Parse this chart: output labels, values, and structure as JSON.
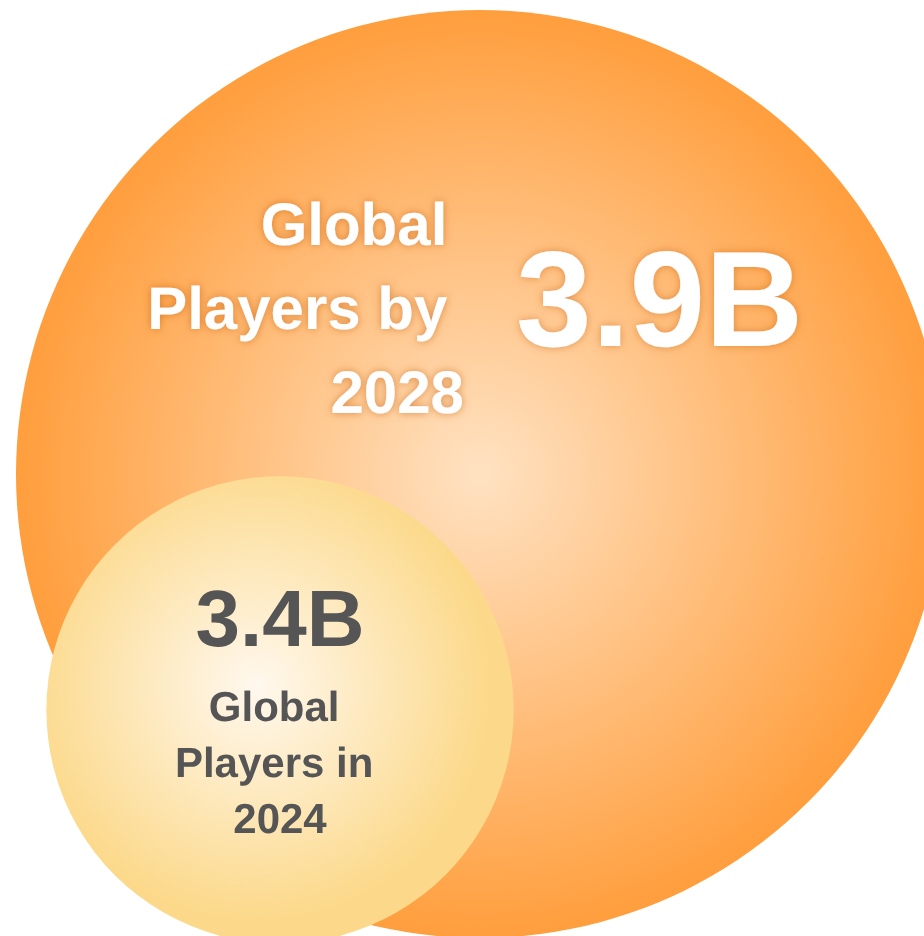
{
  "chart_data": {
    "type": "other",
    "categories": [
      "Global Players by 2028",
      "Global Players in 2024"
    ],
    "values": [
      3.9,
      3.4
    ],
    "value_labels": [
      "3.9B",
      "3.4B"
    ],
    "colors": [
      "#ff9e3d",
      "#fcd98a"
    ]
  }
}
